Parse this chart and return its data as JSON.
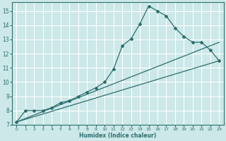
{
  "xlabel": "Humidex (Indice chaleur)",
  "xlim": [
    -0.5,
    23.5
  ],
  "ylim": [
    7,
    15.6
  ],
  "yticks": [
    7,
    8,
    9,
    10,
    11,
    12,
    13,
    14,
    15
  ],
  "xticks": [
    0,
    1,
    2,
    3,
    4,
    5,
    6,
    7,
    8,
    9,
    10,
    11,
    12,
    13,
    14,
    15,
    16,
    17,
    18,
    19,
    20,
    21,
    22,
    23
  ],
  "line_color": "#2d6e6e",
  "bg_color": "#cce8e8",
  "grid_color": "#ffffff",
  "line1_x": [
    0,
    1,
    2,
    3,
    4,
    5,
    6,
    7,
    8,
    9,
    10,
    11,
    12,
    13,
    14,
    15,
    16,
    17,
    18,
    19,
    20,
    21,
    22,
    23
  ],
  "line1_y": [
    7.2,
    8.0,
    8.0,
    8.0,
    8.2,
    8.55,
    8.7,
    9.0,
    9.3,
    9.6,
    10.0,
    10.9,
    12.55,
    13.05,
    14.1,
    15.35,
    15.0,
    14.65,
    13.8,
    13.2,
    12.8,
    12.8,
    12.25,
    11.5
  ],
  "line2_x": [
    0,
    23
  ],
  "line2_y": [
    7.2,
    11.5
  ],
  "line3_x": [
    0,
    23
  ],
  "line3_y": [
    7.2,
    12.8
  ],
  "fig_width": 3.2,
  "fig_height": 2.0,
  "dpi": 100
}
